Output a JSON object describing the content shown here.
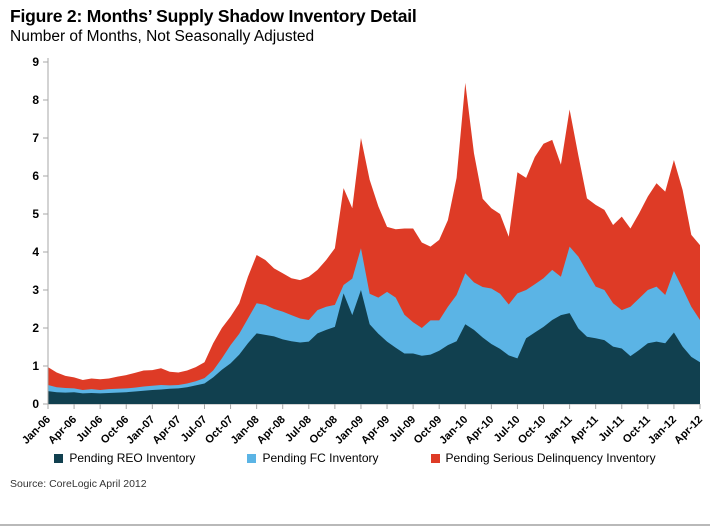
{
  "header": {
    "title": "Figure 2: Months’ Supply Shadow Inventory Detail",
    "subtitle": "Number of Months, Not Seasonally Adjusted"
  },
  "source": "Source: CoreLogic April 2012",
  "chart_data": {
    "type": "area",
    "stacked": true,
    "title": "Months' Supply Shadow Inventory Detail",
    "xlabel": "",
    "ylabel": "Number of Months",
    "x_unit": "month",
    "x_start": "Jan-06",
    "x_end": "Apr-12",
    "x_points": 76,
    "x_tick_every_months": 3,
    "x_tick_labels": [
      "Jan-06",
      "Apr-06",
      "Jul-06",
      "Oct-06",
      "Jan-07",
      "Apr-07",
      "Jul-07",
      "Oct-07",
      "Jan-08",
      "Apr-08",
      "Jul-08",
      "Oct-08",
      "Jan-09",
      "Apr-09",
      "Jul-09",
      "Oct-09",
      "Jan-10",
      "Apr-10",
      "Jul-10",
      "Oct-10",
      "Jan-11",
      "Apr-11",
      "Jul-11",
      "Oct-11",
      "Jan-12",
      "Apr-12"
    ],
    "ylim": [
      0,
      9
    ],
    "y_ticks": [
      0,
      1,
      2,
      3,
      4,
      5,
      6,
      7,
      8,
      9
    ],
    "grid": false,
    "legend_position": "bottom",
    "axis_color": "#a7a7a7",
    "series": [
      {
        "name": "Pending REO Inventory",
        "color": "#11404f",
        "values": [
          0.34,
          0.31,
          0.3,
          0.31,
          0.28,
          0.29,
          0.28,
          0.29,
          0.3,
          0.31,
          0.33,
          0.35,
          0.37,
          0.38,
          0.4,
          0.41,
          0.44,
          0.49,
          0.54,
          0.7,
          0.9,
          1.07,
          1.3,
          1.6,
          1.86,
          1.82,
          1.78,
          1.7,
          1.65,
          1.62,
          1.64,
          1.86,
          1.95,
          2.03,
          2.91,
          2.34,
          3.0,
          2.1,
          1.85,
          1.64,
          1.48,
          1.33,
          1.33,
          1.27,
          1.3,
          1.4,
          1.55,
          1.65,
          2.1,
          1.95,
          1.75,
          1.58,
          1.45,
          1.28,
          1.2,
          1.73,
          1.88,
          2.03,
          2.21,
          2.34,
          2.39,
          1.99,
          1.77,
          1.73,
          1.68,
          1.51,
          1.46,
          1.26,
          1.42,
          1.6,
          1.64,
          1.6,
          1.88,
          1.51,
          1.24,
          1.1
        ]
      },
      {
        "name": "Pending FC Inventory",
        "color": "#5bb4e5",
        "values": [
          0.16,
          0.13,
          0.12,
          0.1,
          0.09,
          0.1,
          0.09,
          0.1,
          0.1,
          0.1,
          0.1,
          0.11,
          0.11,
          0.12,
          0.09,
          0.09,
          0.1,
          0.11,
          0.14,
          0.18,
          0.3,
          0.48,
          0.55,
          0.65,
          0.79,
          0.79,
          0.72,
          0.73,
          0.69,
          0.63,
          0.57,
          0.61,
          0.61,
          0.58,
          0.22,
          0.96,
          1.1,
          0.8,
          0.95,
          1.31,
          1.32,
          1.02,
          0.82,
          0.73,
          0.9,
          0.8,
          1.01,
          1.22,
          1.34,
          1.25,
          1.33,
          1.46,
          1.45,
          1.34,
          1.71,
          1.27,
          1.27,
          1.28,
          1.32,
          1.01,
          1.75,
          1.89,
          1.71,
          1.36,
          1.32,
          1.14,
          1.01,
          1.3,
          1.36,
          1.4,
          1.45,
          1.27,
          1.62,
          1.53,
          1.32,
          1.11
        ]
      },
      {
        "name": "Pending Serious Delinquency Inventory",
        "color": "#de3b26",
        "values": [
          0.47,
          0.39,
          0.32,
          0.29,
          0.26,
          0.28,
          0.28,
          0.28,
          0.32,
          0.35,
          0.39,
          0.42,
          0.41,
          0.44,
          0.36,
          0.33,
          0.34,
          0.37,
          0.42,
          0.72,
          0.8,
          0.75,
          0.8,
          1.1,
          1.27,
          1.18,
          1.07,
          1.01,
          0.97,
          1.01,
          1.14,
          1.06,
          1.23,
          1.49,
          2.55,
          1.85,
          2.9,
          3.0,
          2.4,
          1.71,
          1.8,
          2.27,
          2.47,
          2.25,
          1.94,
          2.12,
          2.28,
          3.08,
          5.01,
          3.4,
          2.32,
          2.11,
          2.1,
          1.78,
          3.19,
          2.95,
          3.35,
          3.54,
          3.42,
          2.95,
          3.61,
          2.67,
          1.93,
          2.15,
          2.11,
          2.06,
          2.46,
          2.06,
          2.24,
          2.46,
          2.72,
          2.72,
          2.92,
          2.59,
          1.89,
          1.97
        ]
      }
    ]
  }
}
